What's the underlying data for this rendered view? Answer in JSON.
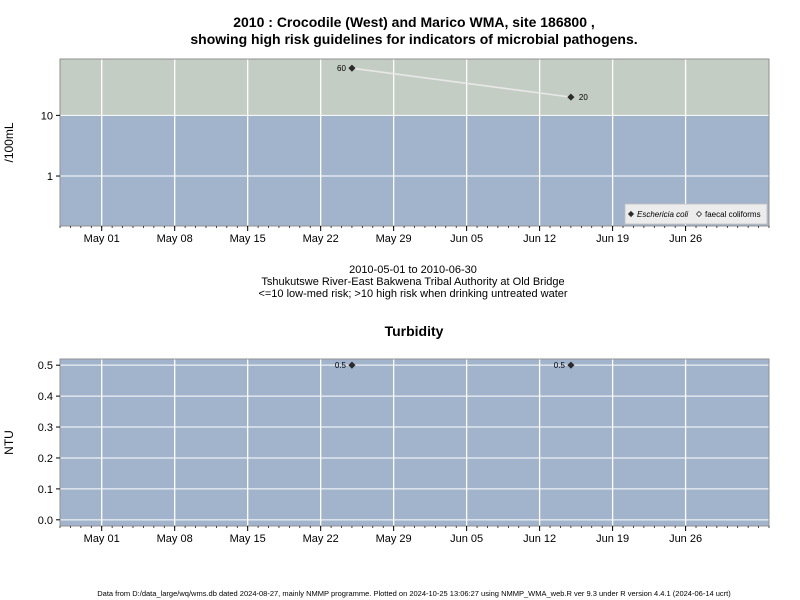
{
  "chart_data": [
    {
      "type": "line",
      "title_line1": "2010 : Crocodile (West) and Marico WMA, site 186800 ,",
      "title_line2": "showing high risk guidelines for indicators of microbial pathogens.",
      "ylabel": "/100mL",
      "yscale": "log",
      "ylim": [
        0.15,
        85
      ],
      "yticks": [
        {
          "value": 1,
          "label": "1"
        },
        {
          "value": 10,
          "label": "10"
        }
      ],
      "xlim": [
        "2010-04-27",
        "2010-07-04"
      ],
      "xticks": [
        "May 01",
        "May 08",
        "May 15",
        "May 22",
        "May 29",
        "Jun 05",
        "Jun 12",
        "Jun 19",
        "Jun 26"
      ],
      "xtick_dates": [
        "2010-05-01",
        "2010-05-08",
        "2010-05-15",
        "2010-05-22",
        "2010-05-29",
        "2010-06-05",
        "2010-06-12",
        "2010-06-19",
        "2010-06-26"
      ],
      "threshold": 10,
      "band_colors": {
        "high_risk": "#c3cdc3",
        "low_risk": "#a2b3cc"
      },
      "series": [
        {
          "name": "Eschericia coli",
          "marker": "filled-diamond",
          "x": [
            "2010-05-25",
            "2010-06-15"
          ],
          "y": [
            60,
            20
          ],
          "labels": [
            "60",
            "20"
          ]
        },
        {
          "name": "faecal coliforms",
          "marker": "open-diamond",
          "x": [],
          "y": [],
          "labels": []
        }
      ],
      "legend_position": "bottom-right",
      "grid": true,
      "caption_lines": [
        "2010-05-01 to 2010-06-30",
        "Tshukutswe River-East Bakwena Tribal Authority at Old Bridge",
        "<=10 low-med risk; >10 high risk when drinking untreated water"
      ]
    },
    {
      "type": "scatter",
      "title": "Turbidity",
      "ylabel": "NTU",
      "ylim": [
        -0.02,
        0.52
      ],
      "yticks": [
        {
          "value": 0,
          "label": "0.0"
        },
        {
          "value": 0.1,
          "label": "0.1"
        },
        {
          "value": 0.2,
          "label": "0.2"
        },
        {
          "value": 0.3,
          "label": "0.3"
        },
        {
          "value": 0.4,
          "label": "0.4"
        },
        {
          "value": 0.5,
          "label": "0.5"
        }
      ],
      "xlim": [
        "2010-04-27",
        "2010-07-04"
      ],
      "xticks": [
        "May 01",
        "May 08",
        "May 15",
        "May 22",
        "May 29",
        "Jun 05",
        "Jun 12",
        "Jun 19",
        "Jun 26"
      ],
      "xtick_dates": [
        "2010-05-01",
        "2010-05-08",
        "2010-05-15",
        "2010-05-22",
        "2010-05-29",
        "2010-06-05",
        "2010-06-12",
        "2010-06-19",
        "2010-06-26"
      ],
      "band_color": "#a2b3cc",
      "series": [
        {
          "marker": "filled-diamond",
          "x": [
            "2010-05-25",
            "2010-06-15"
          ],
          "y": [
            0.5,
            0.5
          ],
          "labels": [
            "0.5",
            "0.5"
          ]
        }
      ],
      "grid": true
    }
  ],
  "footer": "Data from D:/data_large/wq/wms.db dated 2024-08-27, mainly NMMP programme. Plotted on 2024-10-25 13:06:27 using NMMP_WMA_web.R ver 9.3 under R version 4.4.1 (2024-06-14 ucrt)"
}
